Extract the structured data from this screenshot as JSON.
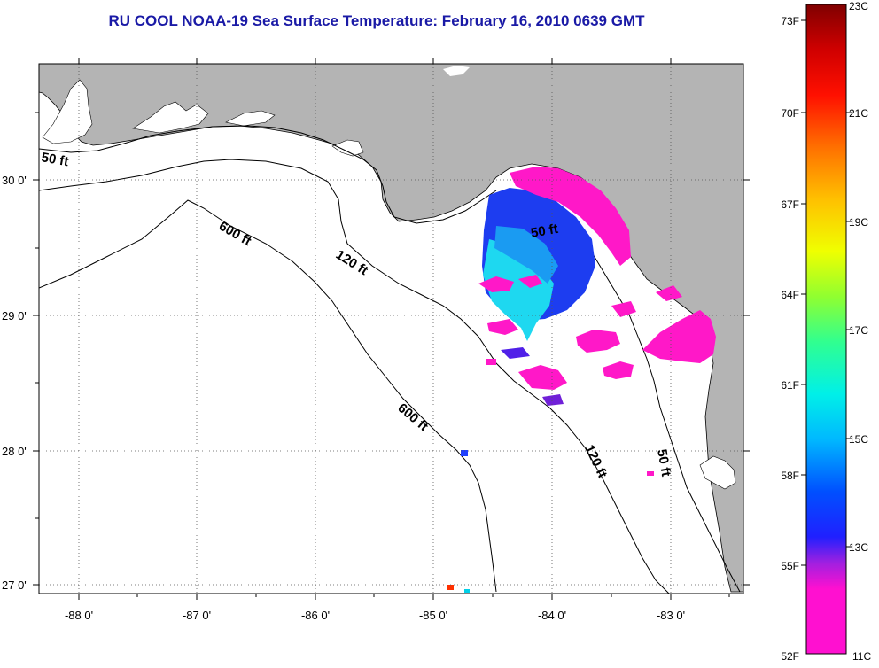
{
  "title": "RU COOL  NOAA-19  Sea Surface Temperature:  February 16, 2010 0639 GMT",
  "map": {
    "lon_ticks": [
      "-88 0'",
      "-87 0'",
      "-86 0'",
      "-85 0'",
      "-84 0'",
      "-83 0'"
    ],
    "lat_ticks": [
      "30 0'",
      "29 0'",
      "28 0'",
      "27 0'"
    ],
    "contour_labels": {
      "shelf_50_west": "50 ft",
      "shelf_600_north": "600 ft",
      "shelf_120_north": "120 ft",
      "shelf_50_east": "50 ft",
      "shelf_600_south": "600 ft",
      "shelf_120_south": "120 ft",
      "shelf_50_south": "50 ft"
    },
    "colors": {
      "land": "#b4b4b4",
      "water": "#ffffff",
      "frame": "#000000"
    }
  },
  "colorbar": {
    "fahrenheit": [
      "73F",
      "70F",
      "67F",
      "64F",
      "61F",
      "58F",
      "55F",
      "52F"
    ],
    "celsius": [
      "23C",
      "21C",
      "19C",
      "17C",
      "15C",
      "13C",
      "11C"
    ],
    "colors": [
      "#ff18c8",
      "#b018d8",
      "#5018e8",
      "#0010ff",
      "#0060ff",
      "#00b0ff",
      "#00f0e0",
      "#30ffa0",
      "#80ff40",
      "#d0ff00",
      "#ffe000",
      "#ff9000",
      "#ff3000",
      "#e00000",
      "#800000"
    ]
  }
}
